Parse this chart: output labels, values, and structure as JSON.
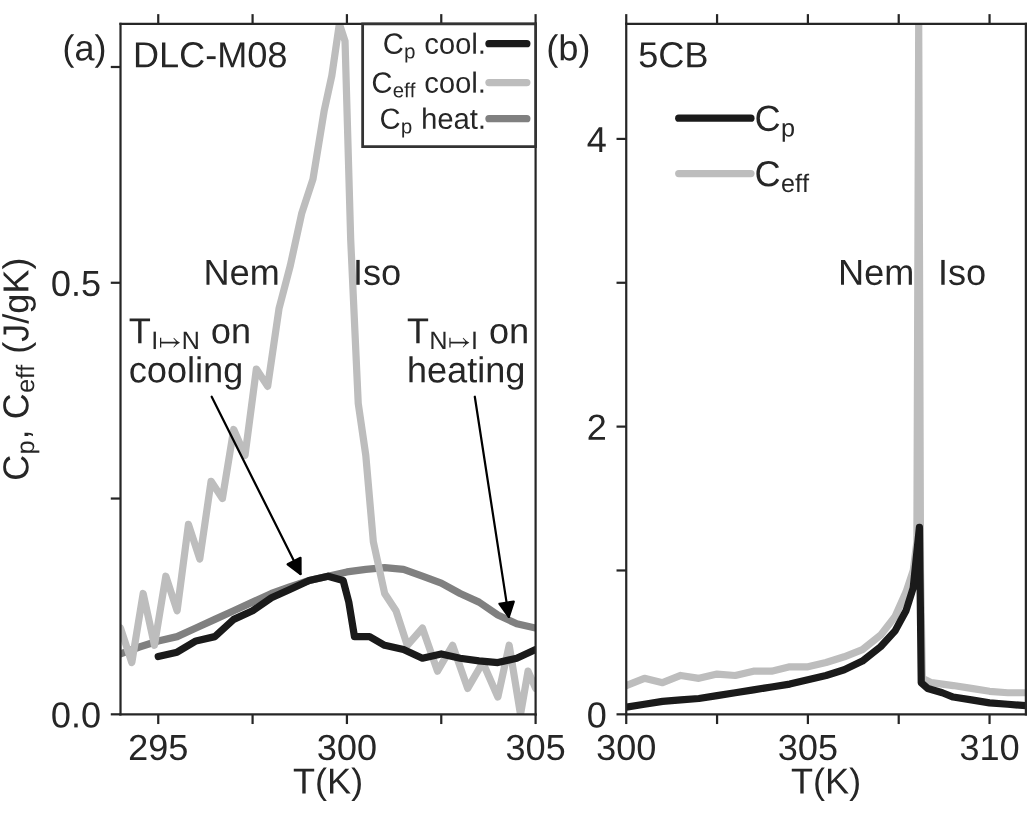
{
  "chart_data": [
    {
      "type": "line",
      "xlabel": "T(K)",
      "ylabel": "C$_{p}$, C$_{eff}$ (J/gK)",
      "xlim": [
        294,
        305
      ],
      "ylim": [
        0,
        0.8
      ],
      "xticks": [
        295,
        {
          "value": 297.5,
          "label": null
        },
        300,
        {
          "value": 302.5,
          "label": null
        },
        305
      ],
      "yticks": [
        {
          "value": 0,
          "label": "0.0"
        },
        {
          "value": 0.25,
          "label": null
        },
        {
          "value": 0.5,
          "label": "0.5"
        },
        {
          "value": 0.75,
          "label": null
        }
      ],
      "legend": "top right",
      "legend_title": "DLC-M08",
      "series": [
        {
          "name": "C$_{p}$ cool.",
          "color": "#1a1a1a",
          "x": [
            295,
            295.5,
            296,
            296.5,
            297,
            297.5,
            298,
            298.5,
            299,
            299.5,
            299.9,
            300.05,
            300.2,
            300.6,
            301,
            301.5,
            302,
            302.5,
            303,
            303.5,
            304,
            304.5,
            305
          ],
          "values": [
            0.067,
            0.072,
            0.085,
            0.09,
            0.11,
            0.12,
            0.135,
            0.145,
            0.155,
            0.16,
            0.155,
            0.13,
            0.09,
            0.09,
            0.08,
            0.075,
            0.065,
            0.07,
            0.065,
            0.062,
            0.06,
            0.065,
            0.075
          ]
        },
        {
          "name": "C$_{eff}$ cool.",
          "color": "#bdbdbd",
          "x": [
            294,
            294.3,
            294.6,
            294.9,
            295.2,
            295.5,
            295.8,
            296.1,
            296.4,
            296.7,
            297,
            297.3,
            297.6,
            297.9,
            298.2,
            298.5,
            298.8,
            299.1,
            299.4,
            299.6,
            299.8,
            299.95,
            300.1,
            300.3,
            300.5,
            300.7,
            301,
            301.3,
            301.6,
            302,
            302.4,
            302.8,
            303.2,
            303.6,
            304,
            304.3,
            304.6,
            304.8,
            305
          ],
          "values": [
            0.1,
            0.06,
            0.14,
            0.08,
            0.16,
            0.12,
            0.22,
            0.18,
            0.27,
            0.25,
            0.33,
            0.3,
            0.4,
            0.38,
            0.47,
            0.52,
            0.58,
            0.62,
            0.7,
            0.74,
            0.8,
            0.78,
            0.55,
            0.36,
            0.3,
            0.2,
            0.14,
            0.12,
            0.08,
            0.1,
            0.05,
            0.08,
            0.03,
            0.06,
            0.02,
            0.08,
            0.0,
            0.05,
            0.03
          ]
        },
        {
          "name": "C$_{p}$ heat.",
          "color": "#808080",
          "x": [
            294,
            294.5,
            295,
            295.5,
            296,
            296.5,
            297,
            297.5,
            298,
            298.5,
            299,
            299.5,
            300,
            300.5,
            301,
            301.5,
            302,
            302.5,
            303,
            303.5,
            304,
            304.5,
            305
          ],
          "values": [
            0.07,
            0.078,
            0.085,
            0.09,
            0.1,
            0.11,
            0.12,
            0.13,
            0.14,
            0.148,
            0.155,
            0.16,
            0.165,
            0.168,
            0.17,
            0.168,
            0.16,
            0.152,
            0.14,
            0.13,
            0.115,
            0.105,
            0.1
          ]
        }
      ],
      "annotations": [
        "(a)",
        "Nem",
        "Iso",
        {
          "text": "T$_{I↦N}$ on\ncooling",
          "x": 298.8,
          "y": 0.16
        },
        {
          "text": "T$_{N↦I}$ on\nheating",
          "x": 304.3,
          "y": 0.11
        }
      ]
    },
    {
      "type": "line",
      "xlabel": "T(K)",
      "xlim": [
        300,
        311
      ],
      "ylim": [
        0,
        4.8
      ],
      "xticks": [
        300,
        {
          "value": 302.5,
          "label": null
        },
        305,
        {
          "value": 307.5,
          "label": null
        },
        310
      ],
      "yticks": [
        0,
        {
          "value": 1,
          "label": null
        },
        2,
        {
          "value": 3,
          "label": null
        },
        4
      ],
      "legend": "top left",
      "legend_title": "5CB",
      "series": [
        {
          "name": "C$_{p}$",
          "color": "#1a1a1a",
          "x": [
            300,
            300.5,
            301,
            301.5,
            302,
            302.5,
            303,
            303.5,
            304,
            304.5,
            305,
            305.5,
            306,
            306.5,
            307,
            307.4,
            307.7,
            307.9,
            308.07,
            308.12,
            308.3,
            308.7,
            309,
            309.5,
            310,
            310.5,
            311
          ],
          "values": [
            0.05,
            0.07,
            0.09,
            0.1,
            0.11,
            0.13,
            0.15,
            0.17,
            0.19,
            0.21,
            0.24,
            0.27,
            0.31,
            0.37,
            0.47,
            0.58,
            0.72,
            0.88,
            1.3,
            0.22,
            0.18,
            0.15,
            0.12,
            0.1,
            0.08,
            0.07,
            0.06
          ]
        },
        {
          "name": "C$_{eff}$",
          "color": "#bdbdbd",
          "x": [
            300,
            300.5,
            301,
            301.5,
            302,
            302.5,
            303,
            303.5,
            304,
            304.5,
            305,
            305.5,
            306,
            306.5,
            307,
            307.4,
            307.7,
            307.9,
            308.0,
            308.05,
            308.1,
            308.15,
            308.4,
            309,
            309.5,
            310,
            310.5,
            311
          ],
          "values": [
            0.2,
            0.25,
            0.22,
            0.27,
            0.25,
            0.28,
            0.27,
            0.3,
            0.3,
            0.33,
            0.33,
            0.36,
            0.4,
            0.45,
            0.55,
            0.68,
            0.85,
            1.0,
            1.2,
            4.8,
            1.0,
            0.25,
            0.22,
            0.2,
            0.18,
            0.16,
            0.15,
            0.15
          ]
        }
      ],
      "annotations": [
        "(b)",
        "Nem",
        "Iso"
      ]
    }
  ]
}
